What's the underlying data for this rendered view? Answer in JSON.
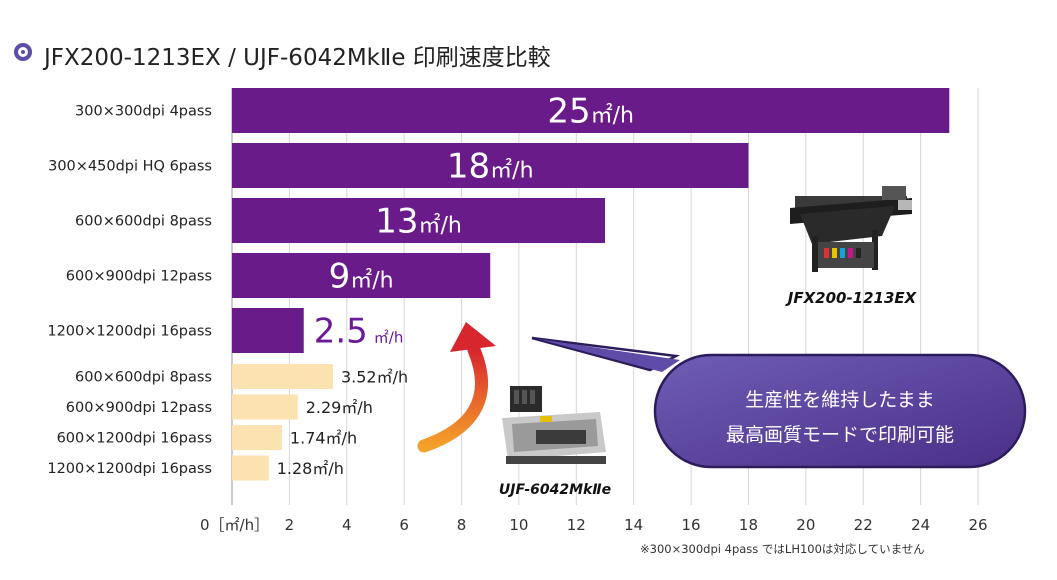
{
  "title": "JFX200-1213EX / UJF-6042MkⅡe 印刷速度比較",
  "colors": {
    "jfx": "#6a1b8a",
    "ujf": "#fbe2b0",
    "accent": "#5b4ea6",
    "bubble_top": "#6c58b0",
    "bubble_bottom": "#4a2f8a"
  },
  "chart_data": {
    "type": "bar",
    "orientation": "horizontal",
    "axis_unit_label": "0［㎡/h］",
    "xlim": [
      0,
      26
    ],
    "xticks": [
      0,
      2,
      4,
      6,
      8,
      10,
      12,
      14,
      16,
      18,
      20,
      22,
      24,
      26
    ],
    "grid": true,
    "bars": [
      {
        "label": "300×300dpi 4pass",
        "value": 25,
        "value_text": "25",
        "unit": "㎡/h",
        "group": "JFX200-1213EX",
        "style": "big"
      },
      {
        "label": "300×450dpi HQ 6pass",
        "value": 18,
        "value_text": "18",
        "unit": "㎡/h",
        "group": "JFX200-1213EX",
        "style": "big"
      },
      {
        "label": "600×600dpi 8pass",
        "value": 13,
        "value_text": "13",
        "unit": "㎡/h",
        "group": "JFX200-1213EX",
        "style": "big"
      },
      {
        "label": "600×900dpi 12pass",
        "value": 9,
        "value_text": "9",
        "unit": "㎡/h",
        "group": "JFX200-1213EX",
        "style": "big"
      },
      {
        "label": "1200×1200dpi 16pass",
        "value": 2.5,
        "value_text": "2.5",
        "unit": "㎡/h",
        "group": "JFX200-1213EX",
        "style": "mid"
      },
      {
        "label": "600×600dpi 8pass",
        "value": 3.52,
        "value_text": "3.52",
        "unit": "㎡/h",
        "group": "UJF-6042MkⅡe",
        "style": "small"
      },
      {
        "label": "600×900dpi 12pass",
        "value": 2.29,
        "value_text": "2.29",
        "unit": "㎡/h",
        "group": "UJF-6042MkⅡe",
        "style": "small"
      },
      {
        "label": "600×1200dpi 16pass",
        "value": 1.74,
        "value_text": "1.74",
        "unit": "㎡/h",
        "group": "UJF-6042MkⅡe",
        "style": "small"
      },
      {
        "label": "1200×1200dpi 16pass",
        "value": 1.28,
        "value_text": "1.28",
        "unit": "㎡/h",
        "group": "UJF-6042MkⅡe",
        "style": "small"
      }
    ]
  },
  "printer_jfx_caption": "JFX200-1213EX",
  "printer_ujf_caption": "UJF-6042MkⅡe",
  "callout": {
    "line1": "生産性を維持したまま",
    "line2": "最高画質モードで印刷可能"
  },
  "footnote": "※300×300dpi 4pass ではLH100は対応していません"
}
